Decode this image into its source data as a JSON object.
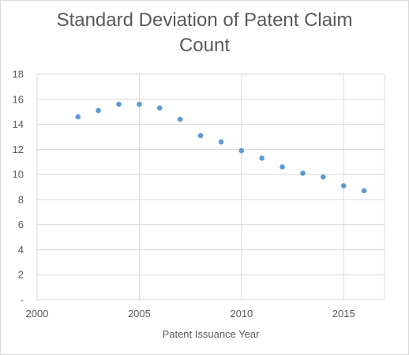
{
  "chart_data": {
    "type": "scatter",
    "title_lines": [
      "Standard Deviation of Patent Claim",
      "Count"
    ],
    "title": "Standard Deviation of Patent Claim Count",
    "xlabel": "Patent Issuance Year",
    "ylabel": "",
    "xlim": [
      2000,
      2017
    ],
    "ylim": [
      0,
      18
    ],
    "x_ticks": [
      2000,
      2005,
      2010,
      2015
    ],
    "x_tick_labels": [
      "2000",
      "2005",
      "2010",
      "2015"
    ],
    "y_ticks": [
      0,
      2,
      4,
      6,
      8,
      10,
      12,
      14,
      16,
      18
    ],
    "y_tick_labels": [
      "-",
      "2",
      "4",
      "6",
      "8",
      "10",
      "12",
      "14",
      "16",
      "18"
    ],
    "grid": {
      "x": true,
      "y": true
    },
    "legend": "none",
    "series": [
      {
        "color": "#5b9bd5",
        "points": [
          {
            "x": 2002,
            "y": 14.6
          },
          {
            "x": 2003,
            "y": 15.1
          },
          {
            "x": 2004,
            "y": 15.6
          },
          {
            "x": 2005,
            "y": 15.6
          },
          {
            "x": 2006,
            "y": 15.3
          },
          {
            "x": 2007,
            "y": 14.4
          },
          {
            "x": 2008,
            "y": 13.1
          },
          {
            "x": 2009,
            "y": 12.6
          },
          {
            "x": 2010,
            "y": 11.9
          },
          {
            "x": 2011,
            "y": 11.3
          },
          {
            "x": 2012,
            "y": 10.6
          },
          {
            "x": 2013,
            "y": 10.1
          },
          {
            "x": 2014,
            "y": 9.8
          },
          {
            "x": 2015,
            "y": 9.1
          },
          {
            "x": 2016,
            "y": 8.7
          }
        ]
      }
    ],
    "colors": {
      "gridline": "#d9d9d9",
      "text": "#595959",
      "border": "#d9d9d9"
    }
  }
}
